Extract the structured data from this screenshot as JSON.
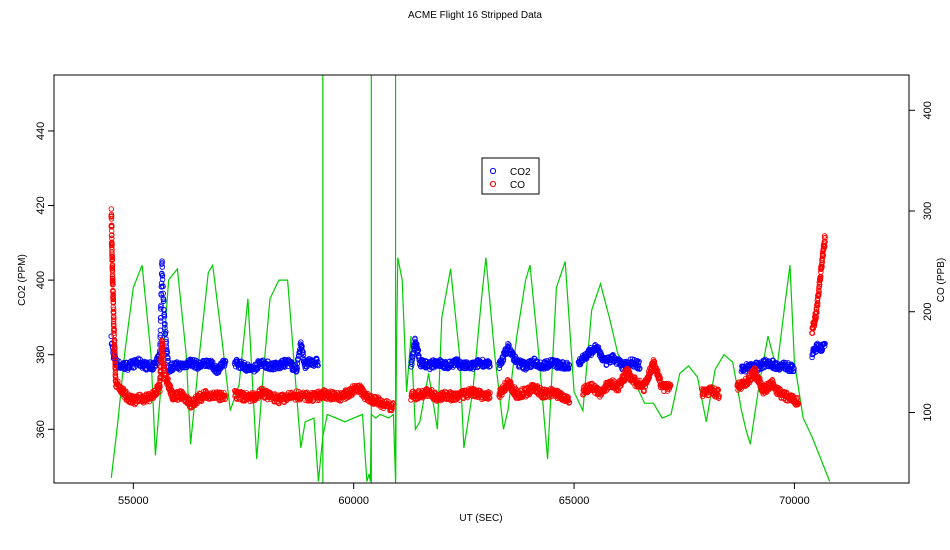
{
  "chart_data": {
    "type": "scatter",
    "title": "ACME Flight  16  Stripped Data",
    "xlabel": "UT (SEC)",
    "ylabel": "CO2 (PPM)",
    "y2label": "CO (PPB)",
    "xlim": [
      53200,
      72600
    ],
    "ylim": [
      345.6,
      455
    ],
    "y2lim": [
      30,
      435
    ],
    "xticks": [
      55000,
      60000,
      65000,
      70000
    ],
    "yticks": [
      360,
      380,
      400,
      420,
      440
    ],
    "y2ticks": [
      100,
      200,
      300,
      400
    ],
    "grid": false,
    "legend_position": "top-center",
    "legend": [
      {
        "name": "CO2",
        "color": "#0000ff",
        "marker": "open-circle"
      },
      {
        "name": "CO",
        "color": "#ff0000",
        "marker": "open-circle"
      }
    ],
    "series": [
      {
        "name": "CO2",
        "axis": "left",
        "color": "#0000ff",
        "segments": [
          {
            "x": [
              54500,
              54550,
              54600,
              54700,
              54900,
              55100,
              55300,
              55500,
              55600,
              55650,
              55700,
              55800,
              55900,
              56100,
              56300,
              56500,
              56700,
              56900,
              57100
            ],
            "y": [
              384,
              380,
              378,
              377,
              377,
              378,
              377,
              377,
              380,
              405,
              390,
              376,
              377,
              377,
              378,
              377,
              378,
              376,
              378
            ]
          },
          {
            "x": [
              57300,
              57500,
              57700,
              57900,
              58100,
              58300,
              58500,
              58700,
              58800,
              58900,
              59000,
              59200
            ],
            "y": [
              378,
              377,
              376,
              378,
              377,
              377,
              378,
              376,
              383,
              377,
              378,
              378
            ]
          },
          {
            "x": [
              61300,
              61400,
              61500,
              61700,
              61900,
              62100,
              62300,
              62500,
              62700,
              62900,
              63100
            ],
            "y": [
              377,
              384,
              378,
              377,
              378,
              377,
              378,
              377,
              377,
              378,
              377
            ]
          },
          {
            "x": [
              63300,
              63500,
              63700,
              63900,
              64100,
              64300,
              64500,
              64700,
              64900
            ],
            "y": [
              377,
              382,
              378,
              377,
              378,
              377,
              378,
              377,
              377
            ]
          },
          {
            "x": [
              65100,
              65300,
              65500,
              65700,
              65900,
              66100,
              66300,
              66500
            ],
            "y": [
              378,
              380,
              382,
              378,
              379,
              377,
              378,
              377
            ]
          },
          {
            "x": [
              68800,
              69000,
              69200,
              69400,
              69600,
              69800,
              70000
            ],
            "y": [
              376,
              377,
              377,
              378,
              377,
              377,
              376
            ]
          },
          {
            "x": [
              70400,
              70500,
              70600,
              70700
            ],
            "y": [
              380,
              382,
              382,
              382
            ]
          }
        ]
      },
      {
        "name": "CO",
        "axis": "right",
        "color": "#ff0000",
        "segments": [
          {
            "x": [
              54500,
              54520,
              54550,
              54600,
              54800,
              55000,
              55200,
              55400,
              55600,
              55650,
              55700,
              55900,
              56100,
              56300,
              56500,
              56700,
              56900,
              57100
            ],
            "y": [
              300,
              250,
              200,
              130,
              118,
              112,
              114,
              115,
              125,
              170,
              140,
              115,
              118,
              108,
              115,
              118,
              116,
              115
            ]
          },
          {
            "x": [
              57300,
              57500,
              57700,
              57900,
              58100,
              58300,
              58500,
              58700,
              58900,
              59100,
              59300,
              59500,
              59700,
              59900,
              60100,
              60300,
              60500,
              60700,
              60900
            ],
            "y": [
              117,
              116,
              115,
              120,
              116,
              113,
              115,
              117,
              116,
              115,
              118,
              117,
              115,
              120,
              125,
              115,
              112,
              108,
              105
            ]
          },
          {
            "x": [
              61300,
              61500,
              61700,
              61900,
              62100,
              62300,
              62500,
              62700,
              62900,
              63100
            ],
            "y": [
              116,
              118,
              120,
              115,
              117,
              115,
              118,
              120,
              117,
              116
            ]
          },
          {
            "x": [
              63300,
              63500,
              63700,
              63900,
              64100,
              64300,
              64500,
              64700,
              64900
            ],
            "y": [
              117,
              130,
              118,
              120,
              125,
              118,
              120,
              117,
              112
            ]
          },
          {
            "x": [
              65200,
              65400,
              65600,
              65800,
              66000,
              66200,
              66400,
              66600,
              66800,
              67000,
              67200
            ],
            "y": [
              122,
              125,
              118,
              130,
              125,
              140,
              130,
              125,
              150,
              125,
              125
            ]
          },
          {
            "x": [
              67900,
              68100,
              68300
            ],
            "y": [
              120,
              122,
              118
            ]
          },
          {
            "x": [
              68700,
              68900,
              69100,
              69300,
              69500,
              69700,
              69900,
              70100
            ],
            "y": [
              125,
              130,
              140,
              122,
              128,
              118,
              115,
              110
            ]
          },
          {
            "x": [
              70400,
              70500,
              70600,
              70700
            ],
            "y": [
              180,
              200,
              240,
              275
            ]
          }
        ]
      },
      {
        "name": "",
        "axis": "left",
        "color": "#00cc00",
        "type": "line",
        "x": [
          54500,
          54650,
          54800,
          55000,
          55200,
          55400,
          55500,
          55650,
          55800,
          56000,
          56200,
          56300,
          56500,
          56700,
          56800,
          57000,
          57200,
          57400,
          57600,
          57800,
          57950,
          58100,
          58300,
          58500,
          58700,
          58800,
          58900,
          59100,
          59200,
          59300,
          59400,
          59600,
          59800,
          60000,
          60200,
          60300,
          60350,
          60380,
          60400,
          60500,
          60600,
          60800,
          60900,
          60950,
          60970,
          61000,
          61100,
          61200,
          61300,
          61400,
          61500,
          61700,
          61900,
          62000,
          62200,
          62400,
          62500,
          62700,
          62900,
          63000,
          63200,
          63400,
          63500,
          63700,
          63900,
          64000,
          64200,
          64400,
          64500,
          64600,
          64800,
          65000,
          65200,
          65400,
          65600,
          65800,
          66000,
          66200,
          66400,
          66600,
          66800,
          67000,
          67200,
          67400,
          67600,
          67800,
          68000,
          68200,
          68400,
          68600,
          68800,
          68900,
          69000,
          69200,
          69400,
          69600,
          69800,
          69900,
          70000,
          70200,
          70400,
          70600,
          70800
        ],
        "y": [
          347,
          362,
          380,
          398,
          404,
          380,
          353,
          375,
          400,
          403,
          380,
          356,
          380,
          402,
          404,
          385,
          365,
          372,
          395,
          352,
          375,
          395,
          400,
          400,
          370,
          355,
          362,
          363,
          346,
          358,
          364,
          363,
          362,
          363,
          364,
          346,
          348,
          346,
          364,
          363,
          364,
          363,
          364,
          346,
          380,
          406,
          400,
          370,
          385,
          360,
          362,
          375,
          360,
          390,
          403,
          380,
          355,
          370,
          395,
          406,
          380,
          360,
          365,
          385,
          400,
          404,
          380,
          352,
          375,
          398,
          405,
          370,
          365,
          392,
          399,
          390,
          380,
          377,
          372,
          367,
          367,
          363,
          364,
          375,
          377,
          374,
          362,
          376,
          380,
          378,
          365,
          360,
          356,
          372,
          385,
          376,
          395,
          404,
          378,
          363,
          358,
          352,
          346
        ]
      }
    ],
    "vertical_lines": [
      59300,
      60400,
      60950
    ]
  }
}
